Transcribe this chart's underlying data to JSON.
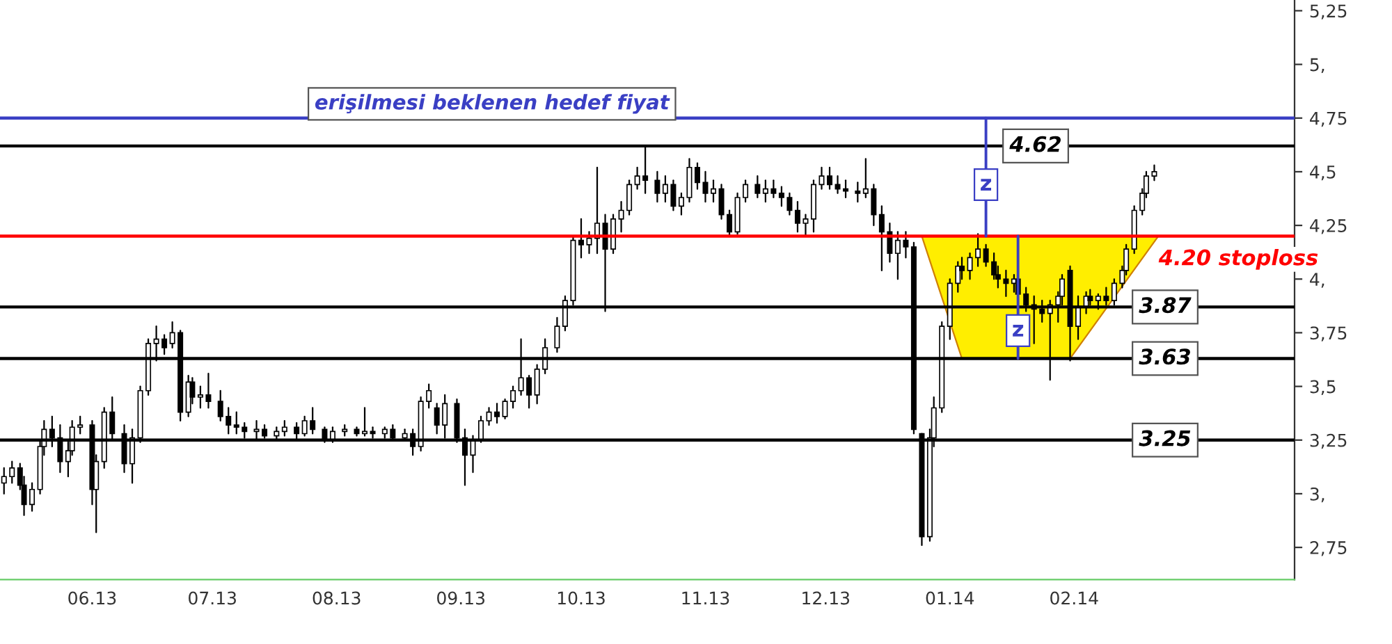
{
  "chart_data": {
    "type": "candlestick",
    "x": [
      "2013-05-10",
      "2013-05-12",
      "2013-05-14",
      "2013-05-15",
      "2013-05-17",
      "2013-05-19",
      "2013-05-20",
      "2013-05-22",
      "2013-05-24",
      "2013-05-26",
      "2013-05-27",
      "2013-05-29",
      "2013-06-01",
      "2013-06-02",
      "2013-06-04",
      "2013-06-06",
      "2013-06-09",
      "2013-06-11",
      "2013-06-13",
      "2013-06-15",
      "2013-06-17",
      "2013-06-19",
      "2013-06-21",
      "2013-06-23",
      "2013-06-25",
      "2013-06-26",
      "2013-06-28",
      "2013-06-30",
      "2013-07-03",
      "2013-07-05",
      "2013-07-07",
      "2013-07-09",
      "2013-07-12",
      "2013-07-14",
      "2013-07-17",
      "2013-07-19",
      "2013-07-22",
      "2013-07-24",
      "2013-07-26",
      "2013-07-29",
      "2013-07-31",
      "2013-08-03",
      "2013-08-06",
      "2013-08-08",
      "2013-08-10",
      "2013-08-13",
      "2013-08-15",
      "2013-08-18",
      "2013-08-20",
      "2013-08-22",
      "2013-08-24",
      "2013-08-26",
      "2013-08-28",
      "2013-08-31",
      "2013-09-02",
      "2013-09-04",
      "2013-09-06",
      "2013-09-08",
      "2013-09-10",
      "2013-09-12",
      "2013-09-14",
      "2013-09-16",
      "2013-09-18",
      "2013-09-20",
      "2013-09-22",
      "2013-09-25",
      "2013-09-27",
      "2013-09-29",
      "2013-10-01",
      "2013-10-03",
      "2013-10-05",
      "2013-10-07",
      "2013-10-09",
      "2013-10-11",
      "2013-10-13",
      "2013-10-15",
      "2013-10-17",
      "2013-10-20",
      "2013-10-22",
      "2013-10-24",
      "2013-10-26",
      "2013-10-28",
      "2013-10-30",
      "2013-11-01",
      "2013-11-03",
      "2013-11-05",
      "2013-11-07",
      "2013-11-09",
      "2013-11-11",
      "2013-11-14",
      "2013-11-16",
      "2013-11-18",
      "2013-11-20",
      "2013-11-22",
      "2013-11-24",
      "2013-11-26",
      "2013-11-28",
      "2013-11-30",
      "2013-12-02",
      "2013-12-04",
      "2013-12-06",
      "2013-12-09",
      "2013-12-11",
      "2013-12-13",
      "2013-12-15",
      "2013-12-17",
      "2013-12-19",
      "2013-12-21",
      "2013-12-23",
      "2013-12-25",
      "2013-12-27",
      "2013-12-28",
      "2013-12-30",
      "2014-01-01",
      "2014-01-03",
      "2014-01-04",
      "2014-01-06",
      "2014-01-08",
      "2014-01-10",
      "2014-01-12",
      "2014-01-13",
      "2014-01-15",
      "2014-01-17",
      "2014-01-18",
      "2014-01-20",
      "2014-01-22",
      "2014-01-24",
      "2014-01-26",
      "2014-01-28",
      "2014-01-29",
      "2014-01-31",
      "2014-02-02",
      "2014-02-04",
      "2014-02-05",
      "2014-02-07",
      "2014-02-09",
      "2014-02-11",
      "2014-02-13",
      "2014-02-14",
      "2014-02-16",
      "2014-02-18",
      "2014-02-19",
      "2014-02-21"
    ],
    "ohlc": [
      [
        3.05,
        3.12,
        3.0,
        3.08
      ],
      [
        3.08,
        3.15,
        3.05,
        3.12
      ],
      [
        3.12,
        3.14,
        3.02,
        3.04
      ],
      [
        3.04,
        3.08,
        2.9,
        2.95
      ],
      [
        2.95,
        3.05,
        2.92,
        3.02
      ],
      [
        3.02,
        3.25,
        3.0,
        3.22
      ],
      [
        3.22,
        3.34,
        3.18,
        3.3
      ],
      [
        3.3,
        3.36,
        3.22,
        3.26
      ],
      [
        3.26,
        3.32,
        3.1,
        3.15
      ],
      [
        3.15,
        3.24,
        3.08,
        3.2
      ],
      [
        3.2,
        3.34,
        3.18,
        3.31
      ],
      [
        3.31,
        3.36,
        3.28,
        3.32
      ],
      [
        3.32,
        3.34,
        2.95,
        3.02
      ],
      [
        3.02,
        3.18,
        2.82,
        3.15
      ],
      [
        3.15,
        3.4,
        3.12,
        3.38
      ],
      [
        3.38,
        3.45,
        3.25,
        3.28
      ],
      [
        3.28,
        3.32,
        3.1,
        3.14
      ],
      [
        3.14,
        3.3,
        3.05,
        3.26
      ],
      [
        3.26,
        3.5,
        3.24,
        3.48
      ],
      [
        3.48,
        3.72,
        3.46,
        3.7
      ],
      [
        3.7,
        3.78,
        3.62,
        3.72
      ],
      [
        3.72,
        3.74,
        3.65,
        3.68
      ],
      [
        3.7,
        3.8,
        3.68,
        3.75
      ],
      [
        3.75,
        3.76,
        3.34,
        3.38
      ],
      [
        3.38,
        3.55,
        3.36,
        3.52
      ],
      [
        3.52,
        3.54,
        3.42,
        3.45
      ],
      [
        3.45,
        3.5,
        3.4,
        3.46
      ],
      [
        3.46,
        3.56,
        3.4,
        3.43
      ],
      [
        3.43,
        3.48,
        3.34,
        3.36
      ],
      [
        3.36,
        3.4,
        3.28,
        3.32
      ],
      [
        3.32,
        3.38,
        3.28,
        3.31
      ],
      [
        3.31,
        3.33,
        3.26,
        3.29
      ],
      [
        3.29,
        3.34,
        3.25,
        3.3
      ],
      [
        3.3,
        3.32,
        3.26,
        3.27
      ],
      [
        3.27,
        3.31,
        3.25,
        3.29
      ],
      [
        3.29,
        3.34,
        3.27,
        3.31
      ],
      [
        3.31,
        3.33,
        3.25,
        3.28
      ],
      [
        3.28,
        3.36,
        3.27,
        3.34
      ],
      [
        3.34,
        3.4,
        3.28,
        3.3
      ],
      [
        3.3,
        3.31,
        3.24,
        3.25
      ],
      [
        3.25,
        3.31,
        3.24,
        3.29
      ],
      [
        3.29,
        3.32,
        3.27,
        3.3
      ],
      [
        3.3,
        3.31,
        3.27,
        3.28
      ],
      [
        3.28,
        3.4,
        3.27,
        3.29
      ],
      [
        3.29,
        3.31,
        3.26,
        3.28
      ],
      [
        3.28,
        3.31,
        3.26,
        3.3
      ],
      [
        3.3,
        3.32,
        3.25,
        3.26
      ],
      [
        3.26,
        3.3,
        3.25,
        3.28
      ],
      [
        3.28,
        3.3,
        3.18,
        3.22
      ],
      [
        3.22,
        3.45,
        3.2,
        3.43
      ],
      [
        3.43,
        3.51,
        3.4,
        3.48
      ],
      [
        3.4,
        3.42,
        3.28,
        3.32
      ],
      [
        3.32,
        3.46,
        3.26,
        3.42
      ],
      [
        3.42,
        3.44,
        3.24,
        3.26
      ],
      [
        3.26,
        3.3,
        3.04,
        3.18
      ],
      [
        3.18,
        3.27,
        3.1,
        3.25
      ],
      [
        3.25,
        3.36,
        3.24,
        3.34
      ],
      [
        3.34,
        3.4,
        3.32,
        3.38
      ],
      [
        3.38,
        3.42,
        3.33,
        3.36
      ],
      [
        3.36,
        3.44,
        3.35,
        3.43
      ],
      [
        3.43,
        3.5,
        3.4,
        3.48
      ],
      [
        3.48,
        3.72,
        3.46,
        3.54
      ],
      [
        3.54,
        3.55,
        3.4,
        3.46
      ],
      [
        3.46,
        3.6,
        3.42,
        3.58
      ],
      [
        3.58,
        3.72,
        3.56,
        3.68
      ],
      [
        3.68,
        3.82,
        3.66,
        3.78
      ],
      [
        3.78,
        3.92,
        3.76,
        3.9
      ],
      [
        3.9,
        4.2,
        3.88,
        4.18
      ],
      [
        4.18,
        4.28,
        4.1,
        4.16
      ],
      [
        4.16,
        4.22,
        4.12,
        4.19
      ],
      [
        4.19,
        4.52,
        4.12,
        4.26
      ],
      [
        4.26,
        4.3,
        3.85,
        4.14
      ],
      [
        4.14,
        4.3,
        4.12,
        4.28
      ],
      [
        4.28,
        4.36,
        4.22,
        4.32
      ],
      [
        4.32,
        4.46,
        4.3,
        4.44
      ],
      [
        4.44,
        4.52,
        4.42,
        4.48
      ],
      [
        4.48,
        4.62,
        4.4,
        4.46
      ],
      [
        4.46,
        4.5,
        4.36,
        4.4
      ],
      [
        4.4,
        4.48,
        4.36,
        4.44
      ],
      [
        4.44,
        4.46,
        4.32,
        4.34
      ],
      [
        4.34,
        4.4,
        4.3,
        4.38
      ],
      [
        4.38,
        4.56,
        4.36,
        4.52
      ],
      [
        4.52,
        4.54,
        4.42,
        4.45
      ],
      [
        4.45,
        4.5,
        4.36,
        4.4
      ],
      [
        4.4,
        4.46,
        4.36,
        4.42
      ],
      [
        4.42,
        4.44,
        4.28,
        4.3
      ],
      [
        4.3,
        4.32,
        4.2,
        4.22
      ],
      [
        4.22,
        4.4,
        4.21,
        4.38
      ],
      [
        4.38,
        4.46,
        4.36,
        4.44
      ],
      [
        4.44,
        4.48,
        4.38,
        4.4
      ],
      [
        4.4,
        4.46,
        4.36,
        4.42
      ],
      [
        4.42,
        4.46,
        4.38,
        4.4
      ],
      [
        4.4,
        4.43,
        4.34,
        4.38
      ],
      [
        4.38,
        4.4,
        4.3,
        4.32
      ],
      [
        4.32,
        4.36,
        4.22,
        4.26
      ],
      [
        4.26,
        4.3,
        4.2,
        4.28
      ],
      [
        4.28,
        4.46,
        4.22,
        4.44
      ],
      [
        4.44,
        4.52,
        4.42,
        4.48
      ],
      [
        4.48,
        4.52,
        4.42,
        4.44
      ],
      [
        4.44,
        4.48,
        4.4,
        4.42
      ],
      [
        4.42,
        4.46,
        4.38,
        4.41
      ],
      [
        4.41,
        4.45,
        4.36,
        4.4
      ],
      [
        4.4,
        4.56,
        4.38,
        4.42
      ],
      [
        4.42,
        4.44,
        4.25,
        4.3
      ],
      [
        4.3,
        4.34,
        4.04,
        4.22
      ],
      [
        4.22,
        4.26,
        4.08,
        4.12
      ],
      [
        4.12,
        4.22,
        4.0,
        4.18
      ],
      [
        4.18,
        4.22,
        4.1,
        4.15
      ],
      [
        4.15,
        4.17,
        3.28,
        3.3
      ],
      [
        3.28,
        3.28,
        2.76,
        2.8
      ],
      [
        2.8,
        3.3,
        2.78,
        3.26
      ],
      [
        3.26,
        3.45,
        3.22,
        3.4
      ],
      [
        3.4,
        3.8,
        3.38,
        3.78
      ],
      [
        3.78,
        4.0,
        3.72,
        3.98
      ],
      [
        3.98,
        4.08,
        3.94,
        4.06
      ],
      [
        4.06,
        4.1,
        4.0,
        4.04
      ],
      [
        4.04,
        4.12,
        4.0,
        4.1
      ],
      [
        4.1,
        4.21,
        4.06,
        4.14
      ],
      [
        4.14,
        4.16,
        4.06,
        4.08
      ],
      [
        4.08,
        4.12,
        4.0,
        4.02
      ],
      [
        4.02,
        4.06,
        3.96,
        4.0
      ],
      [
        4.0,
        4.04,
        3.92,
        3.98
      ],
      [
        3.98,
        4.02,
        3.94,
        4.0
      ],
      [
        4.0,
        4.02,
        3.9,
        3.93
      ],
      [
        3.93,
        3.96,
        3.85,
        3.88
      ],
      [
        3.88,
        3.92,
        3.7,
        3.86
      ],
      [
        3.86,
        3.9,
        3.8,
        3.84
      ],
      [
        3.84,
        3.9,
        3.53,
        3.88
      ],
      [
        3.88,
        3.94,
        3.8,
        3.92
      ],
      [
        3.92,
        4.02,
        3.88,
        4.0
      ],
      [
        4.04,
        4.06,
        3.62,
        3.78
      ],
      [
        3.78,
        3.92,
        3.72,
        3.87
      ],
      [
        3.87,
        3.94,
        3.84,
        3.92
      ],
      [
        3.92,
        3.95,
        3.88,
        3.9
      ],
      [
        3.9,
        3.93,
        3.86,
        3.92
      ],
      [
        3.92,
        3.96,
        3.88,
        3.9
      ],
      [
        3.9,
        4.0,
        3.88,
        3.98
      ],
      [
        3.98,
        4.06,
        3.96,
        4.04
      ],
      [
        4.04,
        4.16,
        4.02,
        4.14
      ],
      [
        4.14,
        4.34,
        4.12,
        4.32
      ],
      [
        4.32,
        4.42,
        4.3,
        4.4
      ],
      [
        4.4,
        4.5,
        4.38,
        4.48
      ],
      [
        4.48,
        4.53,
        4.46,
        4.5
      ]
    ],
    "xlim": [
      "2013-05-09",
      "2014-03-28"
    ],
    "xticks": [
      {
        "value": "2013-06-01",
        "label": "06.13"
      },
      {
        "value": "2013-07-01",
        "label": "07.13"
      },
      {
        "value": "2013-08-01",
        "label": "08.13"
      },
      {
        "value": "2013-09-01",
        "label": "09.13"
      },
      {
        "value": "2013-10-01",
        "label": "10.13"
      },
      {
        "value": "2013-11-01",
        "label": "11.13"
      },
      {
        "value": "2013-12-01",
        "label": "12.13"
      },
      {
        "value": "2014-01-01",
        "label": "01.14"
      },
      {
        "value": "2014-02-01",
        "label": "02.14"
      }
    ],
    "ylim": [
      2.6,
      5.3
    ],
    "yticks": [
      {
        "value": 2.75,
        "label": "2,75"
      },
      {
        "value": 3,
        "label": "3,"
      },
      {
        "value": 3.25,
        "label": "3,25"
      },
      {
        "value": 3.5,
        "label": "3,5"
      },
      {
        "value": 3.75,
        "label": "3,75"
      },
      {
        "value": 4,
        "label": "4,"
      },
      {
        "value": 4.25,
        "label": "4,25"
      },
      {
        "value": 4.5,
        "label": "4,5"
      },
      {
        "value": 4.75,
        "label": "4,75"
      },
      {
        "value": 5,
        "label": "5,"
      },
      {
        "value": 5.25,
        "label": "5,25"
      }
    ],
    "ref_lines": [
      {
        "axis": "y",
        "value": 4.75,
        "label": "erişilmesi beklenen hedef fiyat",
        "color": "#3a3fc4"
      },
      {
        "axis": "y",
        "value": 4.62,
        "label": "4.62",
        "color": "#000000"
      },
      {
        "axis": "y",
        "value": 4.2,
        "label": "4.20 stoploss",
        "color": "#ff0000"
      },
      {
        "axis": "y",
        "value": 3.87,
        "label": "3.87",
        "color": "#000000"
      },
      {
        "axis": "y",
        "value": 3.63,
        "label": "3.63",
        "color": "#000000"
      },
      {
        "axis": "y",
        "value": 3.25,
        "label": "3.25",
        "color": "#000000"
      }
    ],
    "annotations": [
      {
        "text": "z",
        "x": "2014-01-10",
        "y": 4.44
      },
      {
        "text": "z",
        "x": "2014-01-18",
        "y": 3.76
      }
    ],
    "grid": false,
    "legend": false
  }
}
